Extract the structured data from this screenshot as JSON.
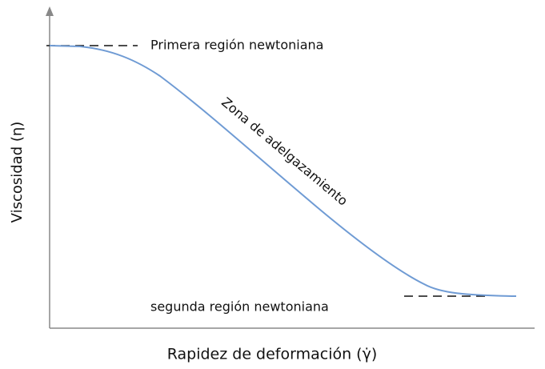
{
  "axes": {
    "y_label": "Viscosidad (η)",
    "x_label": "Rapidez de deformación (γ̇)"
  },
  "annotations": {
    "first_region": "Primera región newtoniana",
    "thinning_zone": "Zona de adelgazamiento",
    "second_region": "segunda región newtoniana"
  }
}
